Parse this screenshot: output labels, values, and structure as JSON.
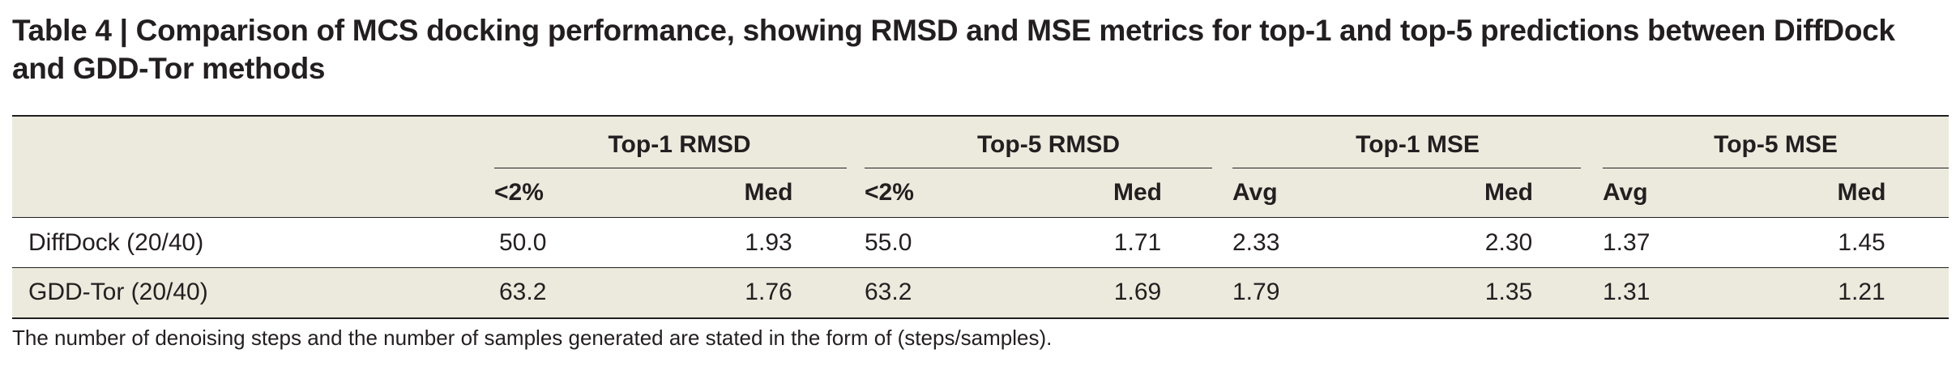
{
  "title": "Table 4 | Comparison of MCS docking performance, showing RMSD and MSE metrics for top-1 and top-5 predictions between DiffDock and GDD-Tor methods",
  "table": {
    "groups": [
      "Top-1 RMSD",
      "Top-5 RMSD",
      "Top-1 MSE",
      "Top-5 MSE"
    ],
    "subheaders": [
      "<2%",
      "Med",
      "<2%",
      "Med",
      "Avg",
      "Med",
      "Avg",
      "Med"
    ],
    "rows": [
      {
        "method": "DiffDock (20/40)",
        "values": [
          "50.0",
          "1.93",
          "55.0",
          "1.71",
          "2.33",
          "2.30",
          "1.37",
          "1.45"
        ]
      },
      {
        "method": "GDD-Tor (20/40)",
        "values": [
          "63.2",
          "1.76",
          "63.2",
          "1.69",
          "1.79",
          "1.35",
          "1.31",
          "1.21"
        ]
      }
    ]
  },
  "footnote": "The number of denoising steps and the number of samples generated are stated in the form of (steps/samples).",
  "colors": {
    "header_bg": "#ebeadd",
    "alt_row_bg": "#ebeadd",
    "text": "#231f20",
    "rule": "#231f20"
  }
}
